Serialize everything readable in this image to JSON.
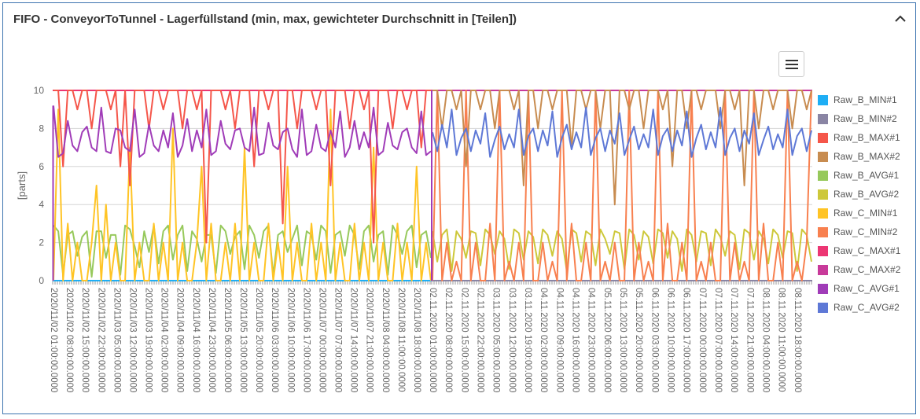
{
  "header": {
    "title": "FIFO - ConveyorToTunnel - Lagerfüllstand (min, max, gewichteter Durchschnitt in [Teilen])",
    "collapse_icon": "chevron-up-icon",
    "menu_icon": "hamburger-menu-icon"
  },
  "chart_data": {
    "type": "line",
    "ylabel": "[parts]",
    "ylim": [
      0,
      10
    ],
    "yticks": [
      "0",
      "2",
      "4",
      "6",
      "8",
      "10"
    ],
    "grid": true,
    "legend_position": "right",
    "legend": [
      {
        "name": "Raw_B_MIN#1",
        "color": "#1eaef5"
      },
      {
        "name": "Raw_B_MIN#2",
        "color": "#8a85a4"
      },
      {
        "name": "Raw_B_MAX#1",
        "color": "#f5564a"
      },
      {
        "name": "Raw_B_MAX#2",
        "color": "#c88c50"
      },
      {
        "name": "Raw_B_AVG#1",
        "color": "#97c95c"
      },
      {
        "name": "Raw_B_AVG#2",
        "color": "#cdc83a"
      },
      {
        "name": "Raw_C_MIN#1",
        "color": "#ffc425"
      },
      {
        "name": "Raw_C_MIN#2",
        "color": "#f8804f"
      },
      {
        "name": "Raw_C_MAX#1",
        "color": "#ec3673"
      },
      {
        "name": "Raw_C_MAX#2",
        "color": "#c83a9a"
      },
      {
        "name": "Raw_C_AVG#1",
        "color": "#a03cb8"
      },
      {
        "name": "Raw_C_AVG#2",
        "color": "#5e78d6"
      }
    ],
    "segments": [
      {
        "xticks": [
          "2020/11/02 01:00:00.0000",
          "2020/11/02 08:00:00.0000",
          "2020/11/02 15:00:00.0000",
          "2020/11/02 22:00:00.0000",
          "2020/11/03 05:00:00.0000",
          "2020/11/03 12:00:00.0000",
          "2020/11/03 19:00:00.0000",
          "2020/11/04 02:00:00.0000",
          "2020/11/04 09:00:00.0000",
          "2020/11/04 16:00:00.0000",
          "2020/11/04 23:00:00.0000",
          "2020/11/05 06:00:00.0000",
          "2020/11/05 13:00:00.0000",
          "2020/11/05 20:00:00.0000",
          "2020/11/06 03:00:00.0000",
          "2020/11/06 10:00:00.0000",
          "2020/11/06 17:00:00.0000",
          "2020/11/07 00:00:00.0000",
          "2020/11/07 07:00:00.0000",
          "2020/11/07 14:00:00.0000",
          "2020/11/07 21:00:00.0000",
          "2020/11/08 04:00:00.0000",
          "2020/11/08 11:00:00.0000",
          "2020/11/08 18:00:00.0000"
        ],
        "series": [
          {
            "name": "Raw_B_MIN#1",
            "constant": 0
          },
          {
            "name": "Raw_C_MAX#1",
            "constant": 10
          },
          {
            "name": "Raw_B_AVG#1",
            "values": [
              2.9,
              2.6,
              0.3,
              2.4,
              2.6,
              1.3,
              2.3,
              2.6,
              0.2,
              2.6,
              2.6,
              1.2,
              2.4,
              2.4,
              0.3,
              2.9,
              2.7,
              1.8,
              0.7,
              2.6,
              1.5,
              2.9,
              0.9,
              2.6,
              2.9,
              1.1,
              2.4,
              2.9,
              0.5,
              2.6,
              2.2,
              1.0,
              2.4,
              2.4,
              0.4,
              2.9,
              2.6,
              1.4,
              2.3,
              2.6,
              0.6,
              2.9,
              2.4,
              1.2,
              2.6,
              2.9,
              0.3,
              2.4,
              2.6,
              1.5,
              2.2,
              2.9,
              0.8,
              2.6,
              2.4,
              1.1,
              2.9,
              2.6,
              0.4,
              2.4,
              2.6,
              1.3,
              2.9,
              2.4,
              0.6,
              2.6,
              2.9,
              1.0,
              2.4,
              2.6,
              0.3,
              2.9,
              2.4,
              1.4,
              2.6,
              2.9,
              0.7,
              2.4,
              2.6,
              1.2
            ]
          },
          {
            "name": "Raw_C_MIN#1",
            "values": [
              0,
              9,
              0,
              3,
              0,
              2,
              0,
              0,
              2,
              5,
              0,
              4,
              0,
              2,
              0,
              0,
              7,
              0,
              2,
              0,
              0,
              3,
              0,
              2,
              0,
              8,
              0,
              2,
              0,
              0,
              2,
              6,
              0,
              3,
              0,
              0,
              2,
              0,
              3,
              0,
              7,
              0,
              2,
              0,
              0,
              3,
              0,
              2,
              0,
              6,
              0,
              2,
              0,
              0,
              3,
              0,
              2,
              0,
              9,
              0,
              2,
              0,
              0,
              3,
              0,
              2,
              0,
              7,
              0,
              2,
              0,
              0,
              3,
              0,
              2,
              0,
              6,
              0,
              2,
              0
            ]
          },
          {
            "name": "Raw_B_MAX#1",
            "values": [
              10,
              10,
              6,
              10,
              10,
              9,
              10,
              10,
              8,
              10,
              10,
              10,
              9,
              10,
              6,
              10,
              5,
              10,
              10,
              10,
              8,
              10,
              10,
              9,
              10,
              10,
              10,
              8,
              10,
              10,
              9,
              10,
              2,
              10,
              10,
              10,
              9,
              10,
              8,
              10,
              10,
              10,
              6,
              10,
              10,
              9,
              10,
              10,
              3,
              10,
              10,
              8,
              10,
              10,
              10,
              9,
              10,
              10,
              5,
              10,
              10,
              10,
              8,
              10,
              10,
              9,
              10,
              2,
              10,
              10,
              10,
              8,
              10,
              10,
              9,
              10,
              10,
              7,
              10,
              10
            ]
          },
          {
            "name": "Raw_C_AVG#1",
            "values": [
              9.2,
              6.5,
              6.7,
              8.4,
              7.1,
              6.8,
              7.8,
              8.1,
              7.0,
              6.8,
              9.1,
              6.8,
              6.7,
              8.0,
              7.9,
              7.0,
              6.8,
              9.0,
              6.5,
              6.7,
              8.2,
              7.1,
              6.8,
              7.9,
              7.0,
              8.8,
              6.5,
              7.1,
              8.5,
              6.8,
              7.9,
              7.0,
              9.0,
              6.6,
              6.8,
              8.4,
              7.2,
              6.9,
              7.9,
              8.0,
              7.0,
              6.8,
              9.1,
              6.6,
              6.7,
              8.3,
              7.1,
              6.9,
              7.8,
              8.0,
              6.9,
              6.5,
              9.0,
              6.6,
              6.8,
              8.2,
              7.0,
              6.8,
              7.9,
              7.0,
              8.9,
              6.5,
              7.0,
              8.4,
              6.9,
              7.8,
              7.0,
              9.1,
              6.6,
              6.8,
              8.3,
              7.1,
              6.9,
              7.8,
              8.0,
              7.0,
              6.7,
              8.9,
              6.6,
              6.8
            ]
          }
        ]
      },
      {
        "xticks": [
          "02.11.2020 01:00:00.0000",
          "02.11.2020 08:00:00.0000",
          "02.11.2020 15:00:00.0000",
          "02.11.2020 22:00:00.0000",
          "03.11.2020 05:00:00.0000",
          "03.11.2020 12:00:00.0000",
          "03.11.2020 19:00:00.0000",
          "04.11.2020 02:00:00.0000",
          "04.11.2020 09:00:00.0000",
          "04.11.2020 16:00:00.0000",
          "04.11.2020 23:00:00.0000",
          "05.11.2020 06:00:00.0000",
          "05.11.2020 13:00:00.0000",
          "05.11.2020 20:00:00.0000",
          "06.11.2020 03:00:00.0000",
          "06.11.2020 10:00:00.0000",
          "06.11.2020 17:00:00.0000",
          "07.11.2020 00:00:00.0000",
          "07.11.2020 07:00:00.0000",
          "07.11.2020 14:00:00.0000",
          "07.11.2020 21:00:00.0000",
          "08.11.2020 04:00:00.0000",
          "08.11.2020 11:00:00.0000",
          "08.11.2020 18:00:00.0000"
        ],
        "series": [
          {
            "name": "Raw_B_MIN#2",
            "constant": 0
          },
          {
            "name": "Raw_C_MAX#2",
            "constant": 10
          },
          {
            "name": "Raw_B_AVG#2",
            "values": [
              2.6,
              1.0,
              2.4,
              2.7,
              0.5,
              2.6,
              2.2,
              1.2,
              2.6,
              2.5,
              0.8,
              2.7,
              2.4,
              1.4,
              2.6,
              2.2,
              0.6,
              2.7,
              2.5,
              1.1,
              2.6,
              2.3,
              0.9,
              2.7,
              2.4,
              1.3,
              2.6,
              2.2,
              0.5,
              2.7,
              2.5,
              1.0,
              2.6,
              2.4,
              0.8,
              2.7,
              2.2,
              1.4,
              2.6,
              2.5,
              0.6,
              2.7,
              2.4,
              1.1,
              2.6,
              2.3,
              0.9,
              2.7,
              2.5,
              1.2,
              2.6,
              2.2,
              0.5,
              2.7,
              2.4,
              1.0,
              2.6,
              2.5,
              0.8,
              2.7,
              2.3,
              1.3,
              2.6,
              2.4,
              0.6,
              2.7,
              2.5,
              1.1,
              2.6,
              2.2,
              0.9,
              2.7,
              2.4,
              1.2,
              2.6,
              2.5,
              0.5,
              2.7,
              2.4,
              1.0
            ]
          },
          {
            "name": "Raw_C_MIN#2",
            "values": [
              0,
              10,
              0,
              2,
              0,
              1,
              0,
              10,
              0,
              2,
              0,
              0,
              3,
              0,
              10,
              0,
              1,
              0,
              2,
              0,
              10,
              0,
              0,
              2,
              0,
              1,
              0,
              10,
              0,
              3,
              0,
              0,
              2,
              0,
              10,
              0,
              1,
              0,
              2,
              0,
              0,
              10,
              0,
              2,
              0,
              1,
              0,
              10,
              0,
              3,
              0,
              0,
              2,
              0,
              10,
              0,
              1,
              0,
              2,
              0,
              0,
              10,
              0,
              2,
              0,
              1,
              0,
              10,
              0,
              3,
              0,
              0,
              2,
              0,
              10,
              0,
              1,
              0,
              2,
              10
            ]
          },
          {
            "name": "Raw_B_MAX#2",
            "values": [
              10,
              10,
              8,
              10,
              10,
              9,
              10,
              6,
              10,
              10,
              9,
              10,
              10,
              8,
              10,
              10,
              10,
              9,
              10,
              5,
              10,
              10,
              8,
              10,
              10,
              9,
              10,
              10,
              10,
              7,
              10,
              10,
              9,
              10,
              10,
              8,
              10,
              10,
              4,
              10,
              10,
              9,
              10,
              10,
              8,
              10,
              10,
              10,
              9,
              10,
              6,
              10,
              10,
              8,
              10,
              10,
              9,
              10,
              10,
              10,
              8,
              10,
              10,
              9,
              10,
              5,
              10,
              10,
              8,
              10,
              10,
              9,
              10,
              10,
              10,
              8,
              10,
              10,
              9,
              10
            ]
          },
          {
            "name": "Raw_C_AVG#2",
            "values": [
              7.8,
              6.8,
              8.2,
              7.0,
              9.0,
              6.6,
              7.5,
              8.0,
              6.8,
              7.9,
              7.2,
              8.8,
              6.5,
              7.4,
              8.1,
              6.9,
              7.7,
              7.0,
              9.0,
              6.6,
              7.6,
              8.0,
              6.8,
              7.9,
              7.1,
              8.9,
              6.5,
              7.5,
              8.2,
              6.9,
              7.8,
              7.0,
              9.1,
              6.6,
              7.5,
              8.0,
              6.8,
              7.9,
              7.2,
              8.8,
              6.6,
              7.4,
              8.1,
              6.9,
              7.7,
              7.0,
              9.0,
              6.6,
              7.6,
              8.0,
              6.8,
              7.9,
              7.1,
              8.9,
              6.5,
              7.5,
              8.2,
              6.9,
              7.8,
              7.0,
              9.1,
              6.6,
              7.5,
              8.0,
              6.8,
              7.9,
              7.2,
              8.8,
              6.6,
              7.4,
              8.1,
              6.9,
              7.7,
              7.0,
              9.0,
              6.6,
              7.6,
              8.0,
              6.8,
              7.9
            ]
          }
        ]
      }
    ]
  }
}
